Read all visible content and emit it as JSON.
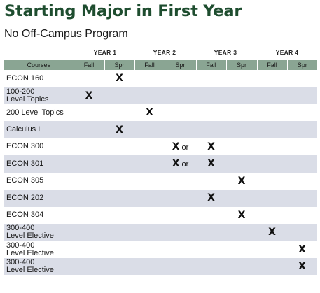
{
  "title": "Starting Major in First Year",
  "subtitle": "No Off-Campus Program",
  "years": [
    "YEAR 1",
    "YEAR 2",
    "YEAR 3",
    "YEAR 4"
  ],
  "columns": [
    "Courses",
    "Fall",
    "Spr",
    "Fall",
    "Spr",
    "Fall",
    "Spr",
    "Fall",
    "Spr"
  ],
  "mark": "X",
  "rows": [
    {
      "course": [
        "ECON 160"
      ],
      "marks": [
        "",
        "X",
        "",
        "",
        "",
        "",
        "",
        ""
      ]
    },
    {
      "course": [
        "100-200",
        "Level Topics"
      ],
      "marks": [
        "X",
        "",
        "",
        "",
        "",
        "",
        "",
        ""
      ]
    },
    {
      "course": [
        "200 Level Topics"
      ],
      "marks": [
        "",
        "",
        "X",
        "",
        "",
        "",
        "",
        ""
      ]
    },
    {
      "course": [
        "Calculus I"
      ],
      "marks": [
        "",
        "X",
        "",
        "",
        "",
        "",
        "",
        ""
      ]
    },
    {
      "course": [
        "ECON 300"
      ],
      "marks": [
        "",
        "",
        "",
        "X or",
        "X",
        "",
        "",
        ""
      ]
    },
    {
      "course": [
        "ECON 301"
      ],
      "marks": [
        "",
        "",
        "",
        "X or",
        "X",
        "",
        "",
        ""
      ]
    },
    {
      "course": [
        "ECON 305"
      ],
      "marks": [
        "",
        "",
        "",
        "",
        "",
        "X",
        "",
        ""
      ]
    },
    {
      "course": [
        "ECON 202"
      ],
      "marks": [
        "",
        "",
        "",
        "",
        "X",
        "",
        "",
        ""
      ]
    },
    {
      "course": [
        "ECON 304"
      ],
      "marks": [
        "",
        "",
        "",
        "",
        "",
        "X",
        "",
        ""
      ]
    },
    {
      "course": [
        "300-400",
        "Level Elective"
      ],
      "marks": [
        "",
        "",
        "",
        "",
        "",
        "",
        "X",
        ""
      ]
    },
    {
      "course": [
        "300-400",
        "Level Elective"
      ],
      "marks": [
        "",
        "",
        "",
        "",
        "",
        "",
        "",
        "X"
      ]
    },
    {
      "course": [
        "300-400",
        "Level Elective"
      ],
      "marks": [
        "",
        "",
        "",
        "",
        "",
        "",
        "",
        "X"
      ]
    }
  ]
}
